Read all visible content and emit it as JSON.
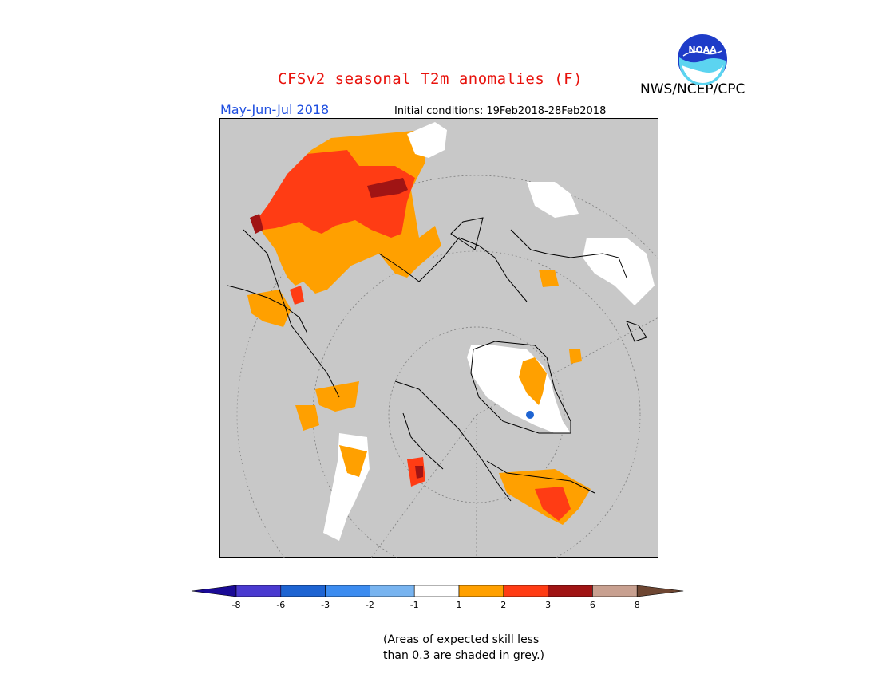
{
  "title": "CFSv2 seasonal T2m anomalies (F)",
  "period": "May-Jun-Jul 2018",
  "initial_conditions": {
    "label": "Initial conditions:",
    "value": "19Feb2018-28Feb2018"
  },
  "agency": "NWS/NCEP/CPC",
  "logo_text": "NOAA",
  "colors": {
    "title": "#e8120c",
    "period": "#1f4fe0",
    "low_skill_grey": "#c8c8c8"
  },
  "legend": {
    "ticks": [
      "-8",
      "-6",
      "-3",
      "-2",
      "-1",
      "1",
      "2",
      "3",
      "6",
      "8"
    ],
    "bins": [
      {
        "color": "#1a0a96"
      },
      {
        "color": "#4a3ad0"
      },
      {
        "color": "#1e64d2"
      },
      {
        "color": "#3c8cf0"
      },
      {
        "color": "#78b4f0"
      },
      {
        "color": "#ffffff"
      },
      {
        "color": "#ffa000"
      },
      {
        "color": "#ff3c14"
      },
      {
        "color": "#a01414"
      },
      {
        "color": "#c8a090"
      },
      {
        "color": "#6e4632"
      }
    ]
  },
  "note": {
    "line1": "(Areas of expected skill less",
    "line2": "than 0.3 are shaded in grey.)"
  }
}
